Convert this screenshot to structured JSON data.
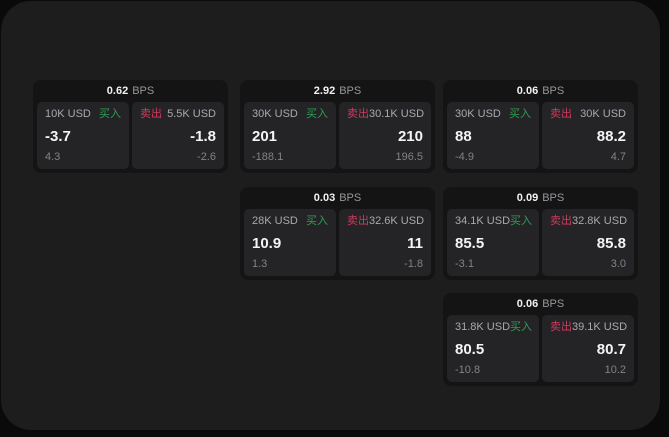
{
  "labels": {
    "bps": "BPS",
    "buy": "买入",
    "sell": "卖出"
  },
  "colors": {
    "background": "#0a0a0a",
    "panel": "#1d1d1e",
    "card": "#141415",
    "tile": "#242427",
    "buy_accent": "#2f9e54",
    "sell_accent": "#ce3a5c",
    "text_primary": "#f4f4f5",
    "text_secondary": "#a9a9ae",
    "text_muted": "#828287"
  },
  "cards": [
    {
      "bps": "0.62",
      "buy": {
        "amount": "10K USD",
        "price": "-3.7",
        "delta": "4.3"
      },
      "sell": {
        "amount": "5.5K USD",
        "price": "-1.8",
        "delta": "-2.6"
      }
    },
    {
      "bps": "2.92",
      "buy": {
        "amount": "30K USD",
        "price": "201",
        "delta": "-188.1"
      },
      "sell": {
        "amount": "30.1K USD",
        "price": "210",
        "delta": "196.5"
      }
    },
    {
      "bps": "0.06",
      "buy": {
        "amount": "30K USD",
        "price": "88",
        "delta": "-4.9"
      },
      "sell": {
        "amount": "30K USD",
        "price": "88.2",
        "delta": "4.7"
      }
    },
    {
      "bps": "0.03",
      "buy": {
        "amount": "28K USD",
        "price": "10.9",
        "delta": "1.3"
      },
      "sell": {
        "amount": "32.6K USD",
        "price": "11",
        "delta": "-1.8"
      }
    },
    {
      "bps": "0.09",
      "buy": {
        "amount": "34.1K USD",
        "price": "85.5",
        "delta": "-3.1"
      },
      "sell": {
        "amount": "32.8K USD",
        "price": "85.8",
        "delta": "3.0"
      }
    },
    {
      "bps": "0.06",
      "buy": {
        "amount": "31.8K USD",
        "price": "80.5",
        "delta": "-10.8"
      },
      "sell": {
        "amount": "39.1K USD",
        "price": "80.7",
        "delta": "10.2"
      }
    }
  ]
}
